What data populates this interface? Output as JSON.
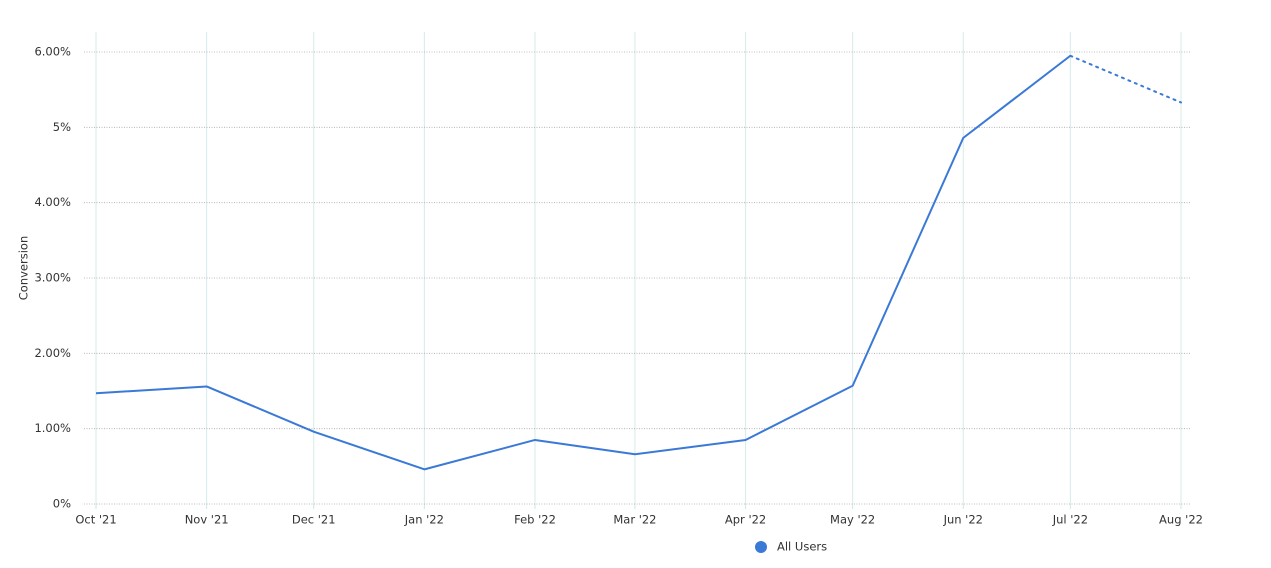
{
  "chart_data": {
    "type": "line",
    "y_label": "Conversion",
    "x": [
      "2021-10",
      "2021-11",
      "2021-12",
      "2022-01",
      "2022-02",
      "2022-03",
      "2022-04",
      "2022-05",
      "2022-06",
      "2022-07",
      "2022-08"
    ],
    "xticks": [
      {
        "value": "2021-10",
        "label": "Oct '21"
      },
      {
        "value": "2021-11",
        "label": "Nov '21"
      },
      {
        "value": "2021-12",
        "label": "Dec '21"
      },
      {
        "value": "2022-01",
        "label": "Jan '22"
      },
      {
        "value": "2022-02",
        "label": "Feb '22"
      },
      {
        "value": "2022-03",
        "label": "Mar '22"
      },
      {
        "value": "2022-04",
        "label": "Apr '22"
      },
      {
        "value": "2022-05",
        "label": "May '22"
      },
      {
        "value": "2022-06",
        "label": "Jun '22"
      },
      {
        "value": "2022-07",
        "label": "Jul '22"
      },
      {
        "value": "2022-08",
        "label": "Aug '22"
      }
    ],
    "xlim": [
      "2021-10",
      "2022-08"
    ],
    "series": [
      {
        "name": "All Users",
        "color": "#3a79d6",
        "values": [
          1.47,
          1.56,
          0.96,
          0.46,
          0.85,
          0.66,
          0.85,
          1.57,
          4.86,
          5.95,
          5.33
        ]
      }
    ],
    "dotted_from": "2022-07",
    "ylim": [
      0,
      6.2
    ],
    "yticks": [
      {
        "value": 0,
        "label": "0%"
      },
      {
        "value": 1,
        "label": "1.00%"
      },
      {
        "value": 2,
        "label": "2.00%"
      },
      {
        "value": 3,
        "label": "3.00%"
      },
      {
        "value": 4,
        "label": "4.00%"
      },
      {
        "value": 5,
        "label": "5%"
      },
      {
        "value": 6,
        "label": "6.00%"
      }
    ],
    "grid": true
  }
}
